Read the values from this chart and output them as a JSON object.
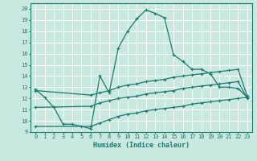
{
  "title": "",
  "xlabel": "Humidex (Indice chaleur)",
  "ylabel": "",
  "bg_color": "#c8e8e0",
  "line_color": "#1a7a6e",
  "grid_color": "#ffffff",
  "xlim": [
    -0.5,
    23.5
  ],
  "ylim": [
    9,
    20.5
  ],
  "yticks": [
    9,
    10,
    11,
    12,
    13,
    14,
    15,
    16,
    17,
    18,
    19,
    20
  ],
  "xticks": [
    0,
    1,
    2,
    3,
    4,
    5,
    6,
    7,
    8,
    9,
    10,
    11,
    12,
    13,
    14,
    15,
    16,
    17,
    18,
    19,
    20,
    21,
    22,
    23
  ],
  "line1_x": [
    0,
    1,
    2,
    3,
    4,
    5,
    6,
    7,
    8,
    9,
    10,
    11,
    12,
    13,
    14,
    15,
    16,
    17,
    18,
    19,
    20,
    21,
    22,
    23
  ],
  "line1_y": [
    12.8,
    12.1,
    11.2,
    9.7,
    9.7,
    9.5,
    9.3,
    14.0,
    12.5,
    16.5,
    18.0,
    19.1,
    19.9,
    19.6,
    19.2,
    15.9,
    15.3,
    14.6,
    14.6,
    14.2,
    13.0,
    13.0,
    12.9,
    12.1
  ],
  "line2_x": [
    0,
    6,
    7,
    8,
    9,
    10,
    11,
    12,
    13,
    14,
    15,
    16,
    17,
    18,
    19,
    20,
    21,
    22,
    23
  ],
  "line2_y": [
    12.7,
    12.3,
    12.5,
    12.7,
    13.0,
    13.2,
    13.3,
    13.5,
    13.6,
    13.7,
    13.9,
    14.0,
    14.1,
    14.2,
    14.3,
    14.4,
    14.5,
    14.6,
    12.2
  ],
  "line3_x": [
    0,
    6,
    7,
    8,
    9,
    10,
    11,
    12,
    13,
    14,
    15,
    16,
    17,
    18,
    19,
    20,
    21,
    22,
    23
  ],
  "line3_y": [
    11.2,
    11.3,
    11.6,
    11.8,
    12.0,
    12.1,
    12.2,
    12.4,
    12.5,
    12.6,
    12.7,
    12.9,
    13.0,
    13.1,
    13.2,
    13.3,
    13.4,
    13.5,
    12.0
  ],
  "line4_x": [
    0,
    6,
    7,
    8,
    9,
    10,
    11,
    12,
    13,
    14,
    15,
    16,
    17,
    18,
    19,
    20,
    21,
    22,
    23
  ],
  "line4_y": [
    9.5,
    9.5,
    9.8,
    10.1,
    10.4,
    10.6,
    10.7,
    10.9,
    11.0,
    11.1,
    11.2,
    11.3,
    11.5,
    11.6,
    11.7,
    11.8,
    11.9,
    12.0,
    12.1
  ]
}
